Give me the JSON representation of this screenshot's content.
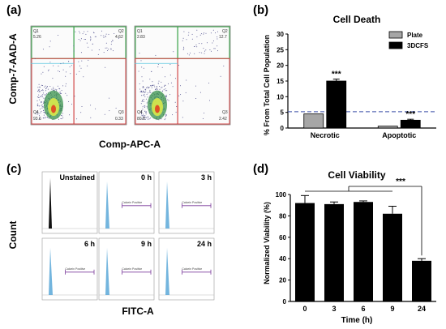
{
  "panels": {
    "a": {
      "letter": "(a)",
      "xlabel": "Comp-APC-A",
      "ylabel": "Comp-7-AAD-A",
      "plots": [
        {
          "q1": "Q1",
          "q2": "Q2",
          "q3": "Q3",
          "q4": "Q4",
          "v1": "5.26",
          "v2": "4.62",
          "v3": "0.33",
          "v4": "93.6"
        },
        {
          "q1": "Q1",
          "q2": "Q2",
          "q3": "Q3",
          "q4": "Q4",
          "v1": "2.83",
          "v2": "12.7",
          "v3": "2.42",
          "v4": "80.8"
        }
      ]
    },
    "c": {
      "letter": "(c)",
      "xlabel": "FITC-A",
      "ylabel": "Count",
      "hists": [
        {
          "label": "Unstained",
          "gate": ""
        },
        {
          "label": "0 h",
          "gate": "Calcein Positive"
        },
        {
          "label": "3 h",
          "gate": "Calcein Positive"
        },
        {
          "label": "6 h",
          "gate": "Calcein Positive"
        },
        {
          "label": "9 h",
          "gate": "Calcein Positive"
        },
        {
          "label": "24 h",
          "gate": "Calcein Positive"
        }
      ]
    }
  },
  "chart_data": [
    {
      "panel": "(b)",
      "type": "bar",
      "title": "Cell Death",
      "ylabel": "% From Total Cell Population",
      "xlabel": "",
      "categories": [
        "Necrotic",
        "Apoptotic"
      ],
      "series": [
        {
          "name": "Plate",
          "values": [
            4.5,
            0.6
          ],
          "errors": [
            0,
            0
          ],
          "color": "#a6a6a6"
        },
        {
          "name": "3DCFS",
          "values": [
            15.0,
            2.5
          ],
          "errors": [
            0.6,
            0.3
          ],
          "color": "#000000"
        }
      ],
      "significance": [
        "***",
        "***"
      ],
      "reference_line": 5.2,
      "ylim": [
        0,
        30
      ],
      "yticks": [
        0,
        5,
        10,
        15,
        20,
        25,
        30
      ],
      "legend": "top-right"
    },
    {
      "panel": "(d)",
      "type": "bar",
      "title": "Cell Viability",
      "ylabel": "Normalized Viability (%)",
      "xlabel": "Time (h)",
      "categories": [
        "0",
        "3",
        "6",
        "9",
        "24"
      ],
      "values": [
        92,
        91,
        93,
        82,
        38
      ],
      "errors": [
        7,
        2,
        1,
        7,
        2
      ],
      "significance": "***",
      "ylim": [
        0,
        100
      ],
      "yticks": [
        0,
        20,
        40,
        60,
        80,
        100
      ]
    }
  ]
}
